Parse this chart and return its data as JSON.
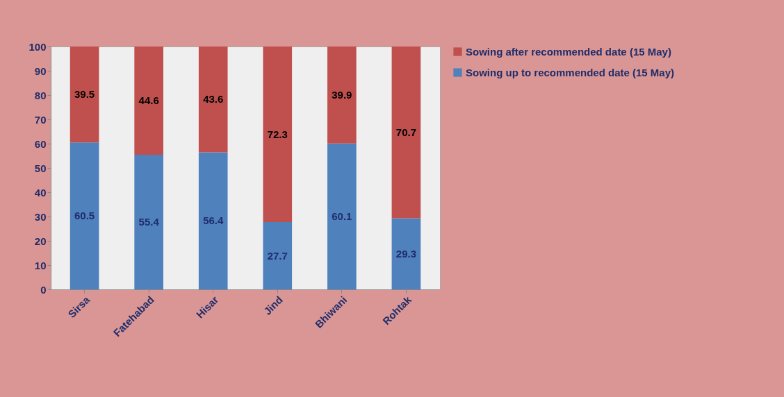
{
  "chart_data": {
    "type": "bar",
    "stacked": true,
    "categories": [
      "Sirsa",
      "Fatehabad",
      "Hisar",
      "Jind",
      "Bhiwani",
      "Rohtak"
    ],
    "series": [
      {
        "name": "Sowing up to recommended date (15 May)",
        "color": "#4f81bd",
        "values": [
          60.5,
          55.4,
          56.4,
          27.7,
          60.1,
          29.3
        ]
      },
      {
        "name": "Sowing after recommended date (15 May)",
        "color": "#c0504d",
        "values": [
          39.5,
          44.6,
          43.6,
          72.3,
          39.9,
          70.7
        ]
      }
    ],
    "ylim": [
      0,
      100
    ],
    "yticks": [
      0,
      10,
      20,
      30,
      40,
      50,
      60,
      70,
      80,
      90,
      100
    ],
    "data_labels": true,
    "legend": "right",
    "grid": false
  }
}
